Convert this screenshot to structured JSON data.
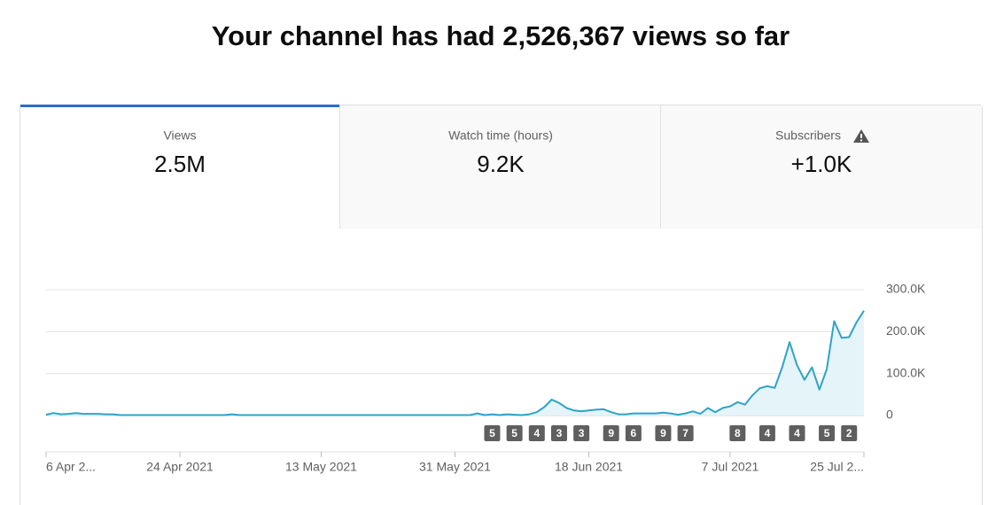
{
  "header": {
    "title": "Your channel has had 2,526,367 views so far"
  },
  "tabs": [
    {
      "label": "Views",
      "value": "2.5M"
    },
    {
      "label": "Watch time (hours)",
      "value": "9.2K"
    },
    {
      "label": "Subscribers",
      "value": "+1.0K"
    }
  ],
  "chart_data": {
    "type": "line",
    "color": "#2fa3c6",
    "area_color": "#e4f4f9",
    "x": [
      "2021-04-06",
      "2021-04-07",
      "2021-04-08",
      "2021-04-09",
      "2021-04-10",
      "2021-04-11",
      "2021-04-12",
      "2021-04-13",
      "2021-04-14",
      "2021-04-15",
      "2021-04-16",
      "2021-04-17",
      "2021-04-18",
      "2021-04-19",
      "2021-04-20",
      "2021-04-21",
      "2021-04-22",
      "2021-04-23",
      "2021-04-24",
      "2021-04-25",
      "2021-04-26",
      "2021-04-27",
      "2021-04-28",
      "2021-04-29",
      "2021-04-30",
      "2021-05-01",
      "2021-05-02",
      "2021-05-03",
      "2021-05-04",
      "2021-05-05",
      "2021-05-06",
      "2021-05-07",
      "2021-05-08",
      "2021-05-09",
      "2021-05-10",
      "2021-05-11",
      "2021-05-12",
      "2021-05-13",
      "2021-05-14",
      "2021-05-15",
      "2021-05-16",
      "2021-05-17",
      "2021-05-18",
      "2021-05-19",
      "2021-05-20",
      "2021-05-21",
      "2021-05-22",
      "2021-05-23",
      "2021-05-24",
      "2021-05-25",
      "2021-05-26",
      "2021-05-27",
      "2021-05-28",
      "2021-05-29",
      "2021-05-30",
      "2021-05-31",
      "2021-06-01",
      "2021-06-02",
      "2021-06-03",
      "2021-06-04",
      "2021-06-05",
      "2021-06-06",
      "2021-06-07",
      "2021-06-08",
      "2021-06-09",
      "2021-06-10",
      "2021-06-11",
      "2021-06-12",
      "2021-06-13",
      "2021-06-14",
      "2021-06-15",
      "2021-06-16",
      "2021-06-17",
      "2021-06-18",
      "2021-06-19",
      "2021-06-20",
      "2021-06-21",
      "2021-06-22",
      "2021-06-23",
      "2021-06-24",
      "2021-06-25",
      "2021-06-26",
      "2021-06-27",
      "2021-06-28",
      "2021-06-29",
      "2021-06-30",
      "2021-07-01",
      "2021-07-02",
      "2021-07-03",
      "2021-07-04",
      "2021-07-05",
      "2021-07-06",
      "2021-07-07",
      "2021-07-08",
      "2021-07-09",
      "2021-07-10",
      "2021-07-11",
      "2021-07-12",
      "2021-07-13",
      "2021-07-14",
      "2021-07-15",
      "2021-07-16",
      "2021-07-17",
      "2021-07-18",
      "2021-07-19",
      "2021-07-20",
      "2021-07-21",
      "2021-07-22",
      "2021-07-23",
      "2021-07-24",
      "2021-07-25"
    ],
    "values": [
      2000,
      6000,
      3000,
      4000,
      6000,
      4000,
      4000,
      4000,
      3000,
      3000,
      1000,
      1000,
      1000,
      1000,
      1000,
      1000,
      1000,
      1000,
      1000,
      1000,
      1000,
      1000,
      1000,
      1000,
      1000,
      3000,
      1000,
      1000,
      1000,
      1000,
      1000,
      1000,
      1000,
      1000,
      1000,
      1000,
      1000,
      1000,
      1000,
      1000,
      1000,
      1000,
      1000,
      1000,
      1000,
      1000,
      1000,
      1000,
      1000,
      1000,
      1000,
      1000,
      1000,
      1000,
      1000,
      1000,
      1000,
      1000,
      5000,
      1000,
      3000,
      1000,
      3000,
      2000,
      1000,
      3000,
      8000,
      20000,
      38000,
      30000,
      18000,
      12000,
      10000,
      12000,
      14000,
      15000,
      8000,
      3000,
      3000,
      5000,
      5000,
      5000,
      5000,
      7000,
      5000,
      2000,
      5000,
      10000,
      4000,
      18000,
      8000,
      18000,
      22000,
      32000,
      26000,
      48000,
      65000,
      70000,
      66000,
      115000,
      175000,
      120000,
      85000,
      115000,
      62000,
      110000,
      225000,
      185000,
      187000,
      222000,
      250000
    ],
    "xlim": [
      "2021-04-06",
      "2021-07-25"
    ],
    "xticks": [
      {
        "value": "2021-04-06",
        "label": "6 Apr 2..."
      },
      {
        "value": "2021-04-24",
        "label": "24 Apr 2021"
      },
      {
        "value": "2021-05-13",
        "label": "13 May 2021"
      },
      {
        "value": "2021-05-31",
        "label": "31 May 2021"
      },
      {
        "value": "2021-06-18",
        "label": "18 Jun 2021"
      },
      {
        "value": "2021-07-07",
        "label": "7 Jul 2021"
      },
      {
        "value": "2021-07-25",
        "label": "25 Jul 2..."
      }
    ],
    "ylim": [
      0,
      300000
    ],
    "yticks": [
      0,
      {
        "value": 100000,
        "label": "100.0K"
      },
      {
        "value": 200000,
        "label": "200.0K"
      },
      {
        "value": 300000,
        "label": "300.0K"
      }
    ],
    "grid": true,
    "annotations": [
      {
        "x": "2021-06-05",
        "label": "5"
      },
      {
        "x": "2021-06-08",
        "label": "5"
      },
      {
        "x": "2021-06-11",
        "label": "4"
      },
      {
        "x": "2021-06-14",
        "label": "3"
      },
      {
        "x": "2021-06-17",
        "label": "3"
      },
      {
        "x": "2021-06-21",
        "label": "9"
      },
      {
        "x": "2021-06-24",
        "label": "6"
      },
      {
        "x": "2021-06-28",
        "label": "9"
      },
      {
        "x": "2021-07-01",
        "label": "7"
      },
      {
        "x": "2021-07-08",
        "label": "8"
      },
      {
        "x": "2021-07-12",
        "label": "4"
      },
      {
        "x": "2021-07-16",
        "label": "4"
      },
      {
        "x": "2021-07-20",
        "label": "5"
      },
      {
        "x": "2021-07-23",
        "label": "2"
      }
    ]
  }
}
